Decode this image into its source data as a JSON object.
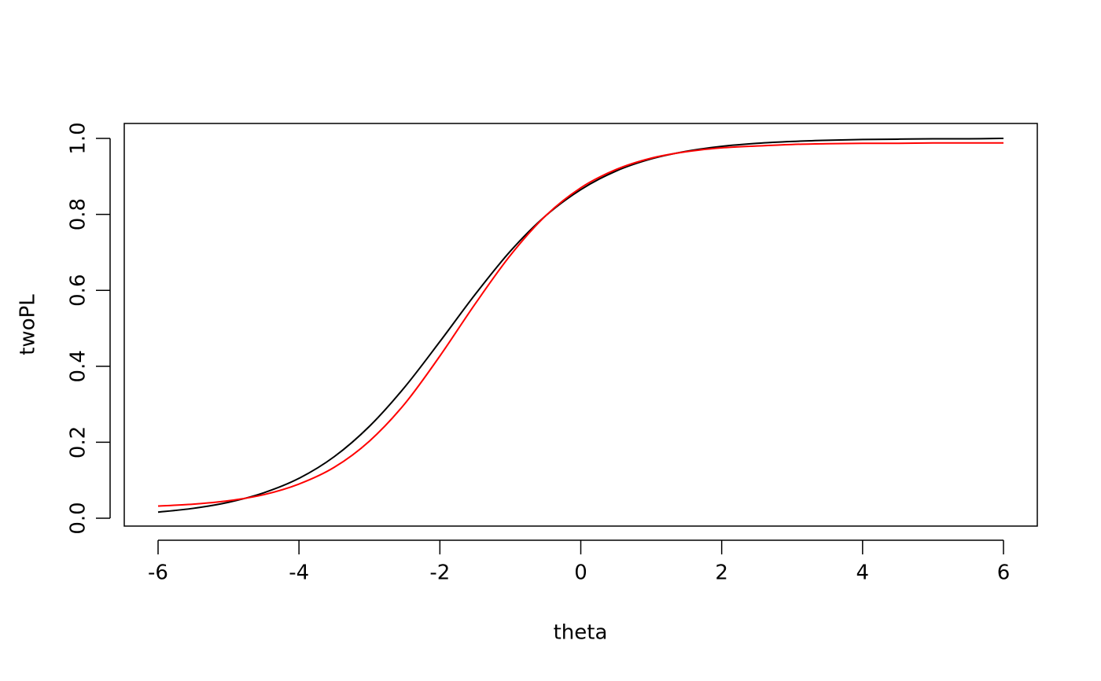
{
  "chart_data": {
    "type": "line",
    "x_label": "theta",
    "y_label": "twoPL",
    "x": [
      -6,
      -5.5,
      -5,
      -4.5,
      -4,
      -3.5,
      -3,
      -2.5,
      -2,
      -1.5,
      -1,
      -0.5,
      0,
      0.5,
      1,
      1.5,
      2,
      2.5,
      3,
      3.5,
      4,
      4.5,
      5,
      5.5,
      6
    ],
    "series": [
      {
        "color": "#000000",
        "values": [
          0.016,
          0.026,
          0.042,
          0.067,
          0.105,
          0.162,
          0.242,
          0.345,
          0.465,
          0.589,
          0.703,
          0.796,
          0.865,
          0.914,
          0.946,
          0.966,
          0.979,
          0.987,
          0.992,
          0.995,
          0.997,
          0.998,
          0.999,
          0.999,
          1.0
        ]
      },
      {
        "color": "#ff0000",
        "values": [
          0.032,
          0.037,
          0.046,
          0.062,
          0.09,
          0.134,
          0.203,
          0.301,
          0.427,
          0.564,
          0.692,
          0.796,
          0.87,
          0.918,
          0.948,
          0.965,
          0.975,
          0.98,
          0.984,
          0.986,
          0.987,
          0.987,
          0.988,
          0.988,
          0.988
        ]
      }
    ],
    "xlim": [
      -6.48,
      6.48
    ],
    "xticks": [
      -6,
      -4,
      -2,
      0,
      2,
      4,
      6
    ],
    "ylim": [
      -0.0207,
      1.0393
    ],
    "yticks": [
      {
        "value": 0,
        "label": "0.0"
      },
      0.2,
      0.4,
      0.6,
      0.8,
      {
        "value": 1,
        "label": "1.0"
      }
    ],
    "grid": false
  }
}
